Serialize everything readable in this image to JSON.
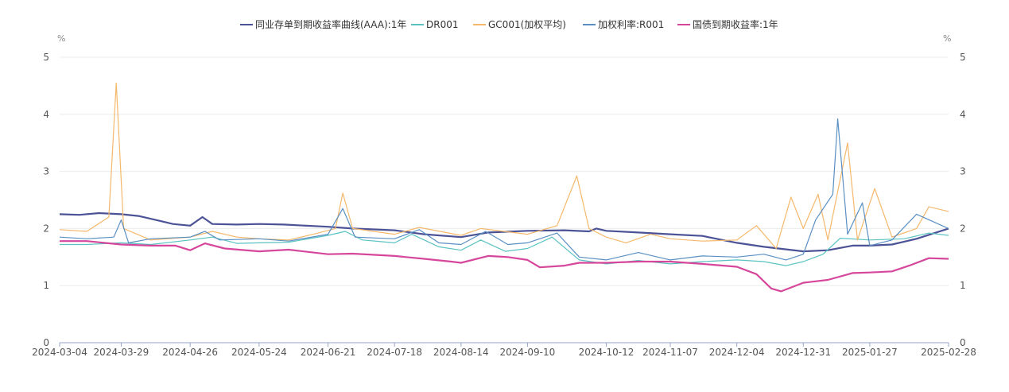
{
  "chart_data": {
    "type": "line",
    "left_unit": "%",
    "right_unit": "%",
    "ylim": [
      0,
      5
    ],
    "y_ticks": [
      0,
      1,
      2,
      3,
      4,
      5
    ],
    "x_tick_labels": [
      "2024-03-04",
      "2024-03-29",
      "2024-04-26",
      "2024-05-24",
      "2024-06-21",
      "2024-07-18",
      "2024-08-14",
      "2024-09-10",
      "2024-10-12",
      "2024-11-07",
      "2024-12-04",
      "2024-12-31",
      "2025-01-27",
      "2025-02-28"
    ],
    "grid": "horizontal",
    "legend_position": "top",
    "series": [
      {
        "name": "同业存单到期收益率曲线(AAA):1年",
        "color": "#4b5396",
        "values": [
          [
            "2024-03-04",
            2.25
          ],
          [
            "2024-03-12",
            2.24
          ],
          [
            "2024-03-20",
            2.27
          ],
          [
            "2024-03-29",
            2.25
          ],
          [
            "2024-04-05",
            2.22
          ],
          [
            "2024-04-12",
            2.15
          ],
          [
            "2024-04-19",
            2.08
          ],
          [
            "2024-04-26",
            2.05
          ],
          [
            "2024-05-01",
            2.2
          ],
          [
            "2024-05-05",
            2.08
          ],
          [
            "2024-05-15",
            2.07
          ],
          [
            "2024-05-24",
            2.08
          ],
          [
            "2024-06-03",
            2.07
          ],
          [
            "2024-06-21",
            2.03
          ],
          [
            "2024-07-01",
            2.0
          ],
          [
            "2024-07-18",
            1.97
          ],
          [
            "2024-07-30",
            1.9
          ],
          [
            "2024-08-14",
            1.85
          ],
          [
            "2024-08-25",
            1.93
          ],
          [
            "2024-09-10",
            1.96
          ],
          [
            "2024-09-25",
            1.97
          ],
          [
            "2024-10-05",
            1.95
          ],
          [
            "2024-10-08",
            2.0
          ],
          [
            "2024-10-12",
            1.96
          ],
          [
            "2024-10-25",
            1.93
          ],
          [
            "2024-11-07",
            1.9
          ],
          [
            "2024-11-20",
            1.87
          ],
          [
            "2024-12-04",
            1.75
          ],
          [
            "2024-12-15",
            1.68
          ],
          [
            "2024-12-31",
            1.6
          ],
          [
            "2025-01-10",
            1.62
          ],
          [
            "2025-01-20",
            1.7
          ],
          [
            "2025-01-27",
            1.7
          ],
          [
            "2025-02-05",
            1.72
          ],
          [
            "2025-02-15",
            1.82
          ],
          [
            "2025-02-28",
            2.0
          ]
        ]
      },
      {
        "name": "DR001",
        "color": "#5bc2c2",
        "values": [
          [
            "2024-03-04",
            1.72
          ],
          [
            "2024-03-15",
            1.72
          ],
          [
            "2024-03-29",
            1.75
          ],
          [
            "2024-04-10",
            1.72
          ],
          [
            "2024-04-26",
            1.8
          ],
          [
            "2024-05-05",
            1.85
          ],
          [
            "2024-05-15",
            1.74
          ],
          [
            "2024-05-24",
            1.75
          ],
          [
            "2024-06-05",
            1.76
          ],
          [
            "2024-06-21",
            1.88
          ],
          [
            "2024-06-28",
            1.95
          ],
          [
            "2024-07-05",
            1.8
          ],
          [
            "2024-07-18",
            1.75
          ],
          [
            "2024-07-25",
            1.9
          ],
          [
            "2024-08-05",
            1.68
          ],
          [
            "2024-08-14",
            1.62
          ],
          [
            "2024-08-22",
            1.8
          ],
          [
            "2024-09-01",
            1.6
          ],
          [
            "2024-09-10",
            1.65
          ],
          [
            "2024-09-20",
            1.85
          ],
          [
            "2024-10-01",
            1.45
          ],
          [
            "2024-10-12",
            1.38
          ],
          [
            "2024-10-25",
            1.44
          ],
          [
            "2024-11-07",
            1.38
          ],
          [
            "2024-11-20",
            1.42
          ],
          [
            "2024-12-04",
            1.45
          ],
          [
            "2024-12-15",
            1.42
          ],
          [
            "2024-12-24",
            1.35
          ],
          [
            "2024-12-31",
            1.42
          ],
          [
            "2025-01-08",
            1.55
          ],
          [
            "2025-01-15",
            1.83
          ],
          [
            "2025-01-27",
            1.8
          ],
          [
            "2025-02-10",
            1.82
          ],
          [
            "2025-02-20",
            1.92
          ],
          [
            "2025-02-28",
            1.88
          ]
        ]
      },
      {
        "name": "GC001(加权平均)",
        "color": "#f5b86b",
        "values": [
          [
            "2024-03-04",
            1.98
          ],
          [
            "2024-03-15",
            1.95
          ],
          [
            "2024-03-24",
            2.2
          ],
          [
            "2024-03-27",
            4.55
          ],
          [
            "2024-03-30",
            2.0
          ],
          [
            "2024-04-10",
            1.8
          ],
          [
            "2024-04-26",
            1.85
          ],
          [
            "2024-05-05",
            1.95
          ],
          [
            "2024-05-15",
            1.85
          ],
          [
            "2024-05-24",
            1.82
          ],
          [
            "2024-06-05",
            1.8
          ],
          [
            "2024-06-15",
            1.9
          ],
          [
            "2024-06-24",
            2.0
          ],
          [
            "2024-06-27",
            2.62
          ],
          [
            "2024-07-01",
            2.0
          ],
          [
            "2024-07-18",
            1.9
          ],
          [
            "2024-07-28",
            2.02
          ],
          [
            "2024-08-14",
            1.88
          ],
          [
            "2024-08-22",
            2.0
          ],
          [
            "2024-09-10",
            1.9
          ],
          [
            "2024-09-22",
            2.05
          ],
          [
            "2024-09-30",
            2.92
          ],
          [
            "2024-10-05",
            2.0
          ],
          [
            "2024-10-12",
            1.85
          ],
          [
            "2024-10-20",
            1.75
          ],
          [
            "2024-10-30",
            1.9
          ],
          [
            "2024-11-07",
            1.82
          ],
          [
            "2024-11-20",
            1.78
          ],
          [
            "2024-12-04",
            1.8
          ],
          [
            "2024-12-12",
            2.05
          ],
          [
            "2024-12-20",
            1.65
          ],
          [
            "2024-12-26",
            2.55
          ],
          [
            "2024-12-31",
            2.0
          ],
          [
            "2025-01-06",
            2.6
          ],
          [
            "2025-01-10",
            1.8
          ],
          [
            "2025-01-18",
            3.5
          ],
          [
            "2025-01-22",
            1.8
          ],
          [
            "2025-01-29",
            2.7
          ],
          [
            "2025-02-05",
            1.85
          ],
          [
            "2025-02-15",
            2.0
          ],
          [
            "2025-02-20",
            2.38
          ],
          [
            "2025-02-28",
            2.3
          ]
        ]
      },
      {
        "name": "加权利率:R001",
        "color": "#5a8fc3",
        "values": [
          [
            "2024-03-04",
            1.85
          ],
          [
            "2024-03-15",
            1.82
          ],
          [
            "2024-03-26",
            1.85
          ],
          [
            "2024-03-29",
            2.15
          ],
          [
            "2024-04-01",
            1.75
          ],
          [
            "2024-04-10",
            1.82
          ],
          [
            "2024-04-26",
            1.85
          ],
          [
            "2024-05-02",
            1.95
          ],
          [
            "2024-05-08",
            1.8
          ],
          [
            "2024-05-24",
            1.82
          ],
          [
            "2024-06-05",
            1.78
          ],
          [
            "2024-06-21",
            1.9
          ],
          [
            "2024-06-27",
            2.35
          ],
          [
            "2024-07-02",
            1.85
          ],
          [
            "2024-07-18",
            1.82
          ],
          [
            "2024-07-28",
            1.98
          ],
          [
            "2024-08-05",
            1.75
          ],
          [
            "2024-08-14",
            1.72
          ],
          [
            "2024-08-24",
            1.95
          ],
          [
            "2024-09-02",
            1.72
          ],
          [
            "2024-09-10",
            1.75
          ],
          [
            "2024-09-22",
            1.92
          ],
          [
            "2024-10-01",
            1.5
          ],
          [
            "2024-10-12",
            1.45
          ],
          [
            "2024-10-25",
            1.58
          ],
          [
            "2024-11-07",
            1.45
          ],
          [
            "2024-11-20",
            1.52
          ],
          [
            "2024-12-04",
            1.5
          ],
          [
            "2024-12-15",
            1.55
          ],
          [
            "2024-12-24",
            1.45
          ],
          [
            "2024-12-31",
            1.55
          ],
          [
            "2025-01-05",
            2.15
          ],
          [
            "2025-01-12",
            2.6
          ],
          [
            "2025-01-14",
            3.92
          ],
          [
            "2025-01-18",
            1.9
          ],
          [
            "2025-01-24",
            2.45
          ],
          [
            "2025-01-27",
            1.7
          ],
          [
            "2025-02-05",
            1.8
          ],
          [
            "2025-02-15",
            2.25
          ],
          [
            "2025-02-28",
            2.0
          ]
        ]
      },
      {
        "name": "国债到期收益率:1年",
        "color": "#d6479c",
        "values": [
          [
            "2024-03-04",
            1.78
          ],
          [
            "2024-03-15",
            1.78
          ],
          [
            "2024-03-29",
            1.72
          ],
          [
            "2024-04-10",
            1.7
          ],
          [
            "2024-04-20",
            1.7
          ],
          [
            "2024-04-26",
            1.62
          ],
          [
            "2024-05-02",
            1.74
          ],
          [
            "2024-05-10",
            1.65
          ],
          [
            "2024-05-24",
            1.6
          ],
          [
            "2024-06-05",
            1.63
          ],
          [
            "2024-06-21",
            1.55
          ],
          [
            "2024-07-01",
            1.56
          ],
          [
            "2024-07-18",
            1.52
          ],
          [
            "2024-07-30",
            1.47
          ],
          [
            "2024-08-10",
            1.42
          ],
          [
            "2024-08-14",
            1.4
          ],
          [
            "2024-08-25",
            1.52
          ],
          [
            "2024-09-02",
            1.5
          ],
          [
            "2024-09-10",
            1.45
          ],
          [
            "2024-09-15",
            1.32
          ],
          [
            "2024-09-25",
            1.35
          ],
          [
            "2024-10-01",
            1.4
          ],
          [
            "2024-10-12",
            1.4
          ],
          [
            "2024-10-25",
            1.42
          ],
          [
            "2024-11-07",
            1.42
          ],
          [
            "2024-11-20",
            1.38
          ],
          [
            "2024-12-04",
            1.33
          ],
          [
            "2024-12-12",
            1.2
          ],
          [
            "2024-12-18",
            0.95
          ],
          [
            "2024-12-22",
            0.9
          ],
          [
            "2024-12-31",
            1.05
          ],
          [
            "2025-01-10",
            1.1
          ],
          [
            "2025-01-20",
            1.22
          ],
          [
            "2025-01-27",
            1.23
          ],
          [
            "2025-02-05",
            1.25
          ],
          [
            "2025-02-12",
            1.35
          ],
          [
            "2025-02-20",
            1.48
          ],
          [
            "2025-02-28",
            1.47
          ]
        ]
      }
    ]
  }
}
